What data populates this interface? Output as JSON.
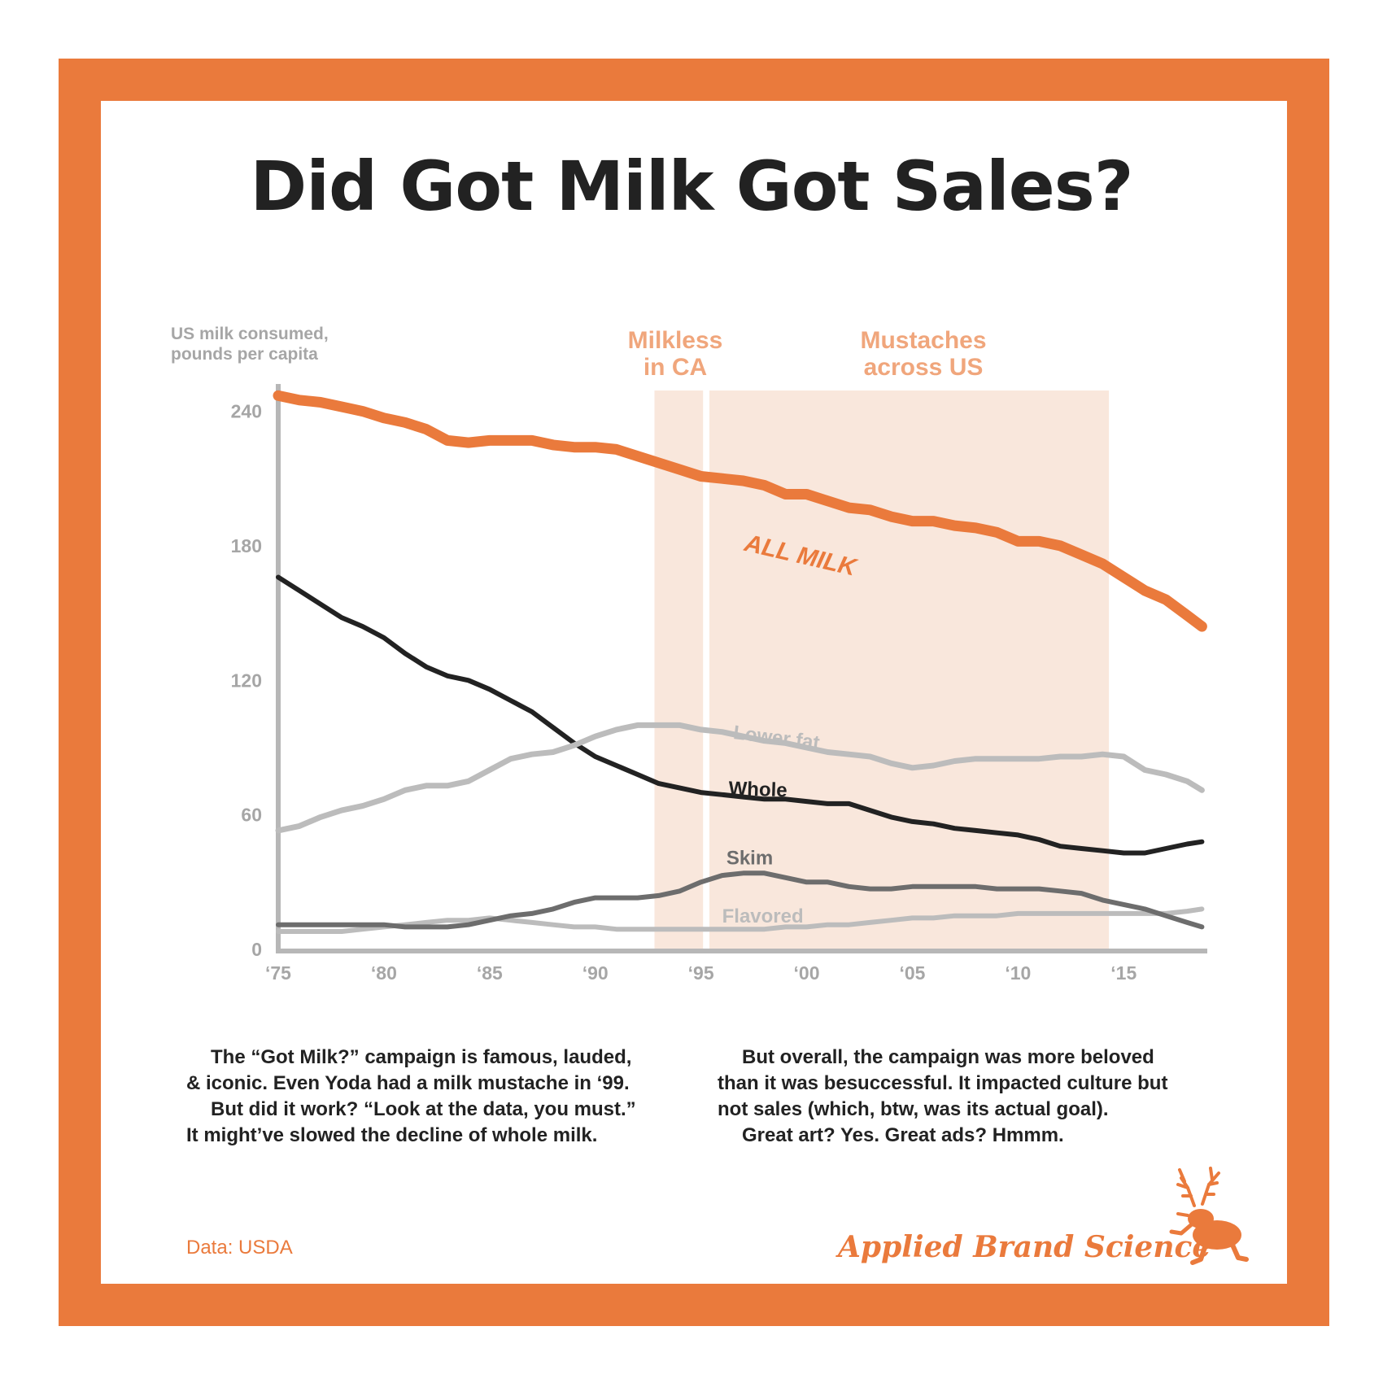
{
  "title": "Did Got Milk Got Sales?",
  "colors": {
    "accent": "#ea7a3c",
    "band": "#f9e7dc",
    "band_label": "#f0a67c",
    "axis": "#b7b7b7",
    "tick_label": "#a6a6a6",
    "text": "#222222"
  },
  "y_axis_title": [
    "US milk consumed,",
    "pounds per capita"
  ],
  "annotations": {
    "milkless": {
      "lines": [
        "Milkless",
        "in CA"
      ]
    },
    "mustaches": {
      "lines": [
        "Mustaches",
        "across US"
      ]
    }
  },
  "chart_data": {
    "type": "line",
    "title": "Did Got Milk Got Sales?",
    "xlabel": "",
    "ylabel": "US milk consumed, pounds per capita",
    "xlim": [
      1975,
      2018.8
    ],
    "ylim": [
      0,
      250
    ],
    "grid": false,
    "x_ticks": [
      1975,
      1980,
      1985,
      1990,
      1995,
      2000,
      2005,
      2010,
      2015
    ],
    "x_tick_labels": [
      "‘75",
      "‘80",
      "‘85",
      "‘90",
      "‘95",
      "‘00",
      "‘05",
      "‘10",
      "‘15"
    ],
    "y_ticks": [
      0,
      60,
      120,
      180,
      240
    ],
    "y_tick_labels": [
      "0",
      "60",
      "120",
      "180",
      "240"
    ],
    "bands": [
      {
        "label": "Milkless in CA",
        "x_start": 1992.8,
        "x_end": 1995.1
      },
      {
        "label": "Mustaches across US",
        "x_start": 1995.4,
        "x_end": 2014.3
      }
    ],
    "x": [
      1975,
      1976,
      1977,
      1978,
      1979,
      1980,
      1981,
      1982,
      1983,
      1984,
      1985,
      1986,
      1987,
      1988,
      1989,
      1990,
      1991,
      1992,
      1993,
      1994,
      1995,
      1996,
      1997,
      1998,
      1999,
      2000,
      2001,
      2002,
      2003,
      2004,
      2005,
      2006,
      2007,
      2008,
      2009,
      2010,
      2011,
      2012,
      2013,
      2014,
      2015,
      2016,
      2017,
      2018,
      2018.7
    ],
    "series": [
      {
        "name": "ALL MILK",
        "label": "ALL MILK",
        "color": "#ea7a3c",
        "width": 13,
        "label_x": 1997.0,
        "label_y": 178,
        "label_rotate": 13,
        "label_size": 30,
        "values": [
          247,
          245,
          244,
          242,
          240,
          237,
          235,
          232,
          227,
          226,
          227,
          227,
          227,
          225,
          224,
          224,
          223,
          220,
          217,
          214,
          211,
          210,
          209,
          207,
          203,
          203,
          200,
          197,
          196,
          193,
          191,
          191,
          189,
          188,
          186,
          182,
          182,
          180,
          176,
          172,
          166,
          160,
          156,
          149,
          144
        ]
      },
      {
        "name": "Lower fat",
        "label": "Lower fat",
        "color": "#bcbcbc",
        "width": 7,
        "label_x": 1996.5,
        "label_y": 94,
        "label_rotate": 7,
        "label_size": 24,
        "values": [
          53,
          55,
          59,
          62,
          64,
          67,
          71,
          73,
          73,
          75,
          80,
          85,
          87,
          88,
          91,
          95,
          98,
          100,
          100,
          100,
          98,
          97,
          95,
          93,
          92,
          90,
          88,
          87,
          86,
          83,
          81,
          82,
          84,
          85,
          85,
          85,
          85,
          86,
          86,
          87,
          86,
          80,
          78,
          75,
          71
        ]
      },
      {
        "name": "Whole",
        "label": "Whole",
        "color": "#222222",
        "width": 6,
        "label_x": 1996.3,
        "label_y": 69,
        "label_rotate": 2,
        "label_size": 24,
        "values": [
          166,
          160,
          154,
          148,
          144,
          139,
          132,
          126,
          122,
          120,
          116,
          111,
          106,
          99,
          92,
          86,
          82,
          78,
          74,
          72,
          70,
          69,
          68,
          67,
          67,
          66,
          65,
          65,
          62,
          59,
          57,
          56,
          54,
          53,
          52,
          51,
          49,
          46,
          45,
          44,
          43,
          43,
          45,
          47,
          48
        ]
      },
      {
        "name": "Skim",
        "label": "Skim",
        "color": "#6d6d6d",
        "width": 6,
        "label_x": 1996.2,
        "label_y": 38,
        "label_rotate": 0,
        "label_size": 24,
        "values": [
          11,
          11,
          11,
          11,
          11,
          11,
          10,
          10,
          10,
          11,
          13,
          15,
          16,
          18,
          21,
          23,
          23,
          23,
          24,
          26,
          30,
          33,
          34,
          34,
          32,
          30,
          30,
          28,
          27,
          27,
          28,
          28,
          28,
          28,
          27,
          27,
          27,
          26,
          25,
          22,
          20,
          18,
          15,
          12,
          10
        ]
      },
      {
        "name": "Flavored",
        "label": "Flavored",
        "color": "#bcbcbc",
        "width": 6,
        "label_x": 1996.0,
        "label_y": 12,
        "label_rotate": 0,
        "label_size": 24,
        "values": [
          8,
          8,
          8,
          8,
          9,
          10,
          11,
          12,
          13,
          13,
          14,
          13,
          12,
          11,
          10,
          10,
          9,
          9,
          9,
          9,
          9,
          9,
          9,
          9,
          10,
          10,
          11,
          11,
          12,
          13,
          14,
          14,
          15,
          15,
          15,
          16,
          16,
          16,
          16,
          16,
          16,
          16,
          16,
          17,
          18
        ]
      }
    ]
  },
  "paragraphs": {
    "left": [
      "The “Got Milk?” campaign is famous, lauded,",
      "& iconic. Even Yoda had a milk mustache in ‘99.",
      "But did it work? “Look at the data, you must.”",
      "It might’ve slowed the decline of whole milk."
    ],
    "right": [
      "But overall, the campaign was more beloved",
      "than it was besuccessful. It impacted culture but",
      "not sales (which, btw, was its actual goal).",
      "Great art? Yes. Great ads? Hmmm."
    ]
  },
  "source": "Data: USDA",
  "brand": "Applied Brand Science",
  "logo_icon": "jackalope-icon"
}
